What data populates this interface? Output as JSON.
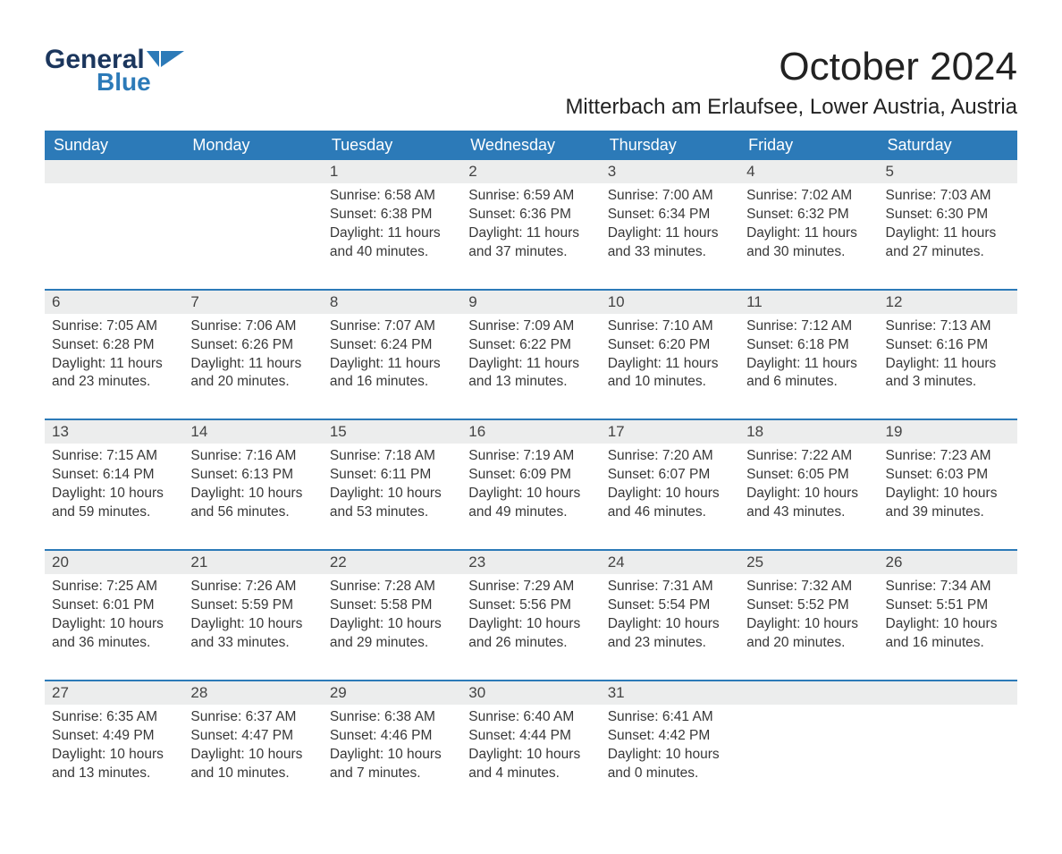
{
  "logo": {
    "text1": "General",
    "text2": "Blue"
  },
  "title": {
    "month": "October 2024",
    "location": "Mitterbach am Erlaufsee, Lower Austria, Austria"
  },
  "colors": {
    "header_bg": "#2c7ab8",
    "header_text": "#ffffff",
    "daynum_bg": "#eceded",
    "row_divider": "#2c7ab8",
    "body_text": "#383838",
    "logo_general": "#1b365d",
    "logo_blue": "#2c7ab8",
    "page_bg": "#ffffff"
  },
  "day_headers": [
    "Sunday",
    "Monday",
    "Tuesday",
    "Wednesday",
    "Thursday",
    "Friday",
    "Saturday"
  ],
  "weeks": [
    [
      null,
      null,
      {
        "n": "1",
        "sr": "6:58 AM",
        "ss": "6:38 PM",
        "dl": "11 hours and 40 minutes."
      },
      {
        "n": "2",
        "sr": "6:59 AM",
        "ss": "6:36 PM",
        "dl": "11 hours and 37 minutes."
      },
      {
        "n": "3",
        "sr": "7:00 AM",
        "ss": "6:34 PM",
        "dl": "11 hours and 33 minutes."
      },
      {
        "n": "4",
        "sr": "7:02 AM",
        "ss": "6:32 PM",
        "dl": "11 hours and 30 minutes."
      },
      {
        "n": "5",
        "sr": "7:03 AM",
        "ss": "6:30 PM",
        "dl": "11 hours and 27 minutes."
      }
    ],
    [
      {
        "n": "6",
        "sr": "7:05 AM",
        "ss": "6:28 PM",
        "dl": "11 hours and 23 minutes."
      },
      {
        "n": "7",
        "sr": "7:06 AM",
        "ss": "6:26 PM",
        "dl": "11 hours and 20 minutes."
      },
      {
        "n": "8",
        "sr": "7:07 AM",
        "ss": "6:24 PM",
        "dl": "11 hours and 16 minutes."
      },
      {
        "n": "9",
        "sr": "7:09 AM",
        "ss": "6:22 PM",
        "dl": "11 hours and 13 minutes."
      },
      {
        "n": "10",
        "sr": "7:10 AM",
        "ss": "6:20 PM",
        "dl": "11 hours and 10 minutes."
      },
      {
        "n": "11",
        "sr": "7:12 AM",
        "ss": "6:18 PM",
        "dl": "11 hours and 6 minutes."
      },
      {
        "n": "12",
        "sr": "7:13 AM",
        "ss": "6:16 PM",
        "dl": "11 hours and 3 minutes."
      }
    ],
    [
      {
        "n": "13",
        "sr": "7:15 AM",
        "ss": "6:14 PM",
        "dl": "10 hours and 59 minutes."
      },
      {
        "n": "14",
        "sr": "7:16 AM",
        "ss": "6:13 PM",
        "dl": "10 hours and 56 minutes."
      },
      {
        "n": "15",
        "sr": "7:18 AM",
        "ss": "6:11 PM",
        "dl": "10 hours and 53 minutes."
      },
      {
        "n": "16",
        "sr": "7:19 AM",
        "ss": "6:09 PM",
        "dl": "10 hours and 49 minutes."
      },
      {
        "n": "17",
        "sr": "7:20 AM",
        "ss": "6:07 PM",
        "dl": "10 hours and 46 minutes."
      },
      {
        "n": "18",
        "sr": "7:22 AM",
        "ss": "6:05 PM",
        "dl": "10 hours and 43 minutes."
      },
      {
        "n": "19",
        "sr": "7:23 AM",
        "ss": "6:03 PM",
        "dl": "10 hours and 39 minutes."
      }
    ],
    [
      {
        "n": "20",
        "sr": "7:25 AM",
        "ss": "6:01 PM",
        "dl": "10 hours and 36 minutes."
      },
      {
        "n": "21",
        "sr": "7:26 AM",
        "ss": "5:59 PM",
        "dl": "10 hours and 33 minutes."
      },
      {
        "n": "22",
        "sr": "7:28 AM",
        "ss": "5:58 PM",
        "dl": "10 hours and 29 minutes."
      },
      {
        "n": "23",
        "sr": "7:29 AM",
        "ss": "5:56 PM",
        "dl": "10 hours and 26 minutes."
      },
      {
        "n": "24",
        "sr": "7:31 AM",
        "ss": "5:54 PM",
        "dl": "10 hours and 23 minutes."
      },
      {
        "n": "25",
        "sr": "7:32 AM",
        "ss": "5:52 PM",
        "dl": "10 hours and 20 minutes."
      },
      {
        "n": "26",
        "sr": "7:34 AM",
        "ss": "5:51 PM",
        "dl": "10 hours and 16 minutes."
      }
    ],
    [
      {
        "n": "27",
        "sr": "6:35 AM",
        "ss": "4:49 PM",
        "dl": "10 hours and 13 minutes."
      },
      {
        "n": "28",
        "sr": "6:37 AM",
        "ss": "4:47 PM",
        "dl": "10 hours and 10 minutes."
      },
      {
        "n": "29",
        "sr": "6:38 AM",
        "ss": "4:46 PM",
        "dl": "10 hours and 7 minutes."
      },
      {
        "n": "30",
        "sr": "6:40 AM",
        "ss": "4:44 PM",
        "dl": "10 hours and 4 minutes."
      },
      {
        "n": "31",
        "sr": "6:41 AM",
        "ss": "4:42 PM",
        "dl": "10 hours and 0 minutes."
      },
      null,
      null
    ]
  ],
  "labels": {
    "sunrise": "Sunrise:",
    "sunset": "Sunset:",
    "daylight": "Daylight:"
  }
}
